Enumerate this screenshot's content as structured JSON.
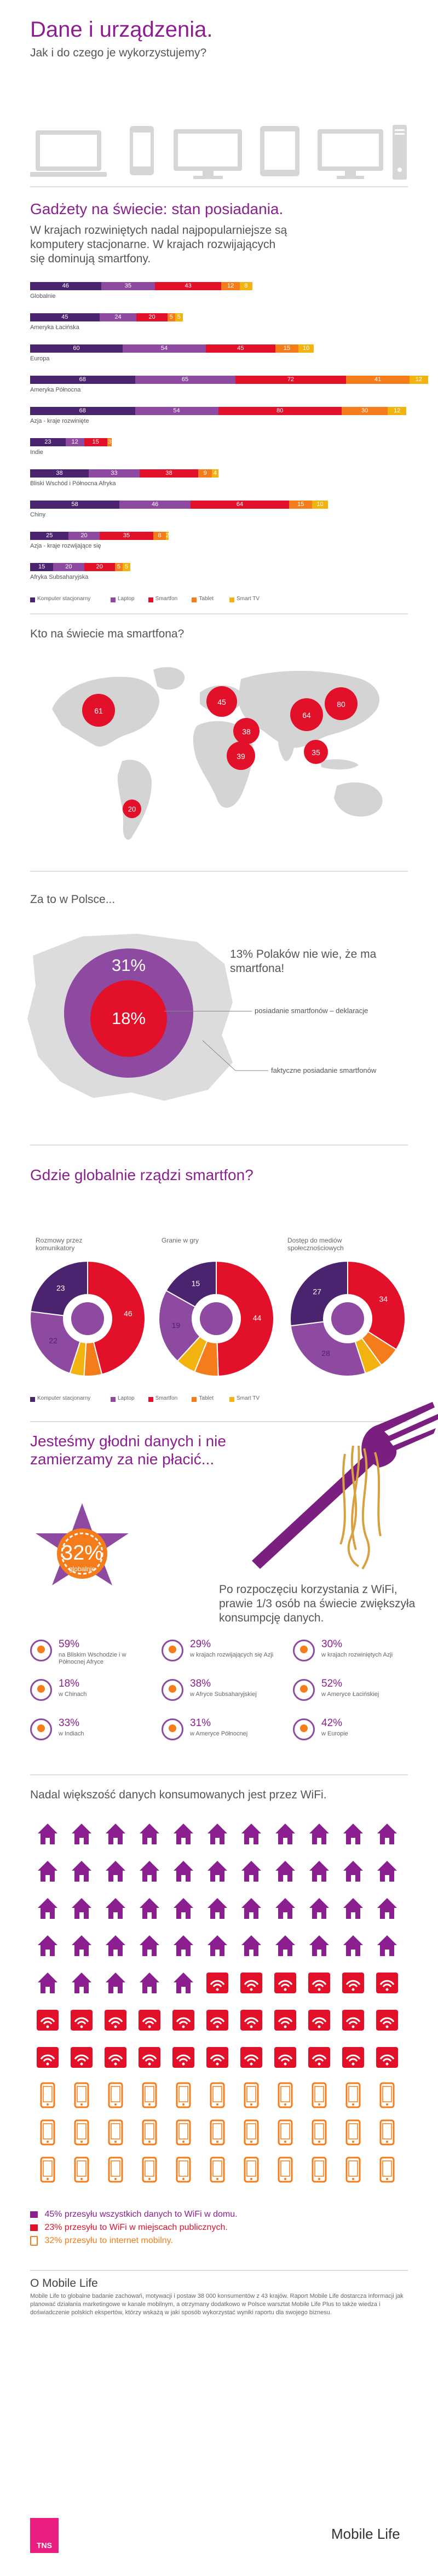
{
  "header": {
    "title": "Dane i urządzenia.",
    "subtitle": "Jak i do czego je wykorzystujemy?"
  },
  "colors": {
    "desktop": "#4b2470",
    "laptop": "#8e4aa0",
    "smartphone": "#e3102a",
    "tablet": "#f47c1a",
    "smart_tv": "#f2b20f",
    "accent": "#8b1f8f",
    "gray": "#d6d6d6"
  },
  "ownership": {
    "title": "Gadżety na świecie: stan posiadania.",
    "text": "W krajach rozwiniętych nadal najpopularniejsze są komputery stacjonarne. W krajach rozwijających się dominują smartfony.",
    "legend": [
      "Komputer stacjonarny",
      "Laptop",
      "Smartfon",
      "Tablet",
      "Smart TV"
    ],
    "rows": [
      {
        "label": "Globalnie",
        "values": [
          46,
          35,
          43,
          12,
          8
        ]
      },
      {
        "label": "Ameryka Łacińska",
        "values": [
          45,
          24,
          20,
          5,
          5
        ]
      },
      {
        "label": "Europa",
        "values": [
          60,
          54,
          45,
          15,
          10
        ]
      },
      {
        "label": "Ameryka Północna",
        "values": [
          68,
          65,
          72,
          41,
          12
        ]
      },
      {
        "label": "Azja - kraje rozwinięte",
        "values": [
          68,
          54,
          80,
          30,
          12
        ]
      },
      {
        "label": "Indie",
        "values": [
          23,
          12,
          15,
          3,
          0
        ]
      },
      {
        "label": "Bliski Wschód i Północna Afryka",
        "values": [
          38,
          33,
          38,
          9,
          4
        ]
      },
      {
        "label": "Chiny",
        "values": [
          58,
          46,
          64,
          15,
          10
        ]
      },
      {
        "label": "Azja - kraje rozwijające się",
        "values": [
          25,
          20,
          35,
          8,
          2
        ]
      },
      {
        "label": "Afryka Subsaharyjska",
        "values": [
          15,
          20,
          20,
          5,
          5
        ]
      }
    ]
  },
  "map": {
    "title": "Kto na świecie ma smartfona?",
    "bubbles": [
      "61",
      "45",
      "38",
      "39",
      "64",
      "80",
      "35",
      "20"
    ]
  },
  "poland": {
    "title": "Za to w Polsce...",
    "outer_pct": "31%",
    "inner_pct": "18%",
    "quote": "13% Polaków nie wie, że ma smartfona!",
    "label_declared": "posiadanie smartfonów – deklaracje",
    "label_actual": "faktyczne posiadanie smartfonów"
  },
  "rules": {
    "title": "Gdzie globalnie rządzi smartfon?",
    "donuts": [
      {
        "label": "Rozmowy przez komunikatory",
        "values": [
          23,
          22,
          46,
          5,
          4
        ]
      },
      {
        "label": "Granie w gry",
        "values": [
          15,
          19,
          44,
          6,
          5
        ]
      },
      {
        "label": "Dostęp do mediów społecznościowych",
        "values": [
          27,
          28,
          34,
          6,
          5
        ]
      }
    ],
    "legend": [
      "Komputer stacjonarny",
      "Laptop",
      "Smartfon",
      "Tablet",
      "Smart TV"
    ]
  },
  "hungry": {
    "title": "Jesteśmy głodni danych i nie zamierzamy za nie płacić...",
    "pct": "32%",
    "pct_label": "globalnie",
    "text": "Po rozpoczęciu korzystania z WiFi, prawie 1/3 osób na świecie zwiększyła konsumpcję danych.",
    "stats": [
      {
        "pct": "59%",
        "desc": "na Bliskim Wschodzie i w Północnej Afryce"
      },
      {
        "pct": "29%",
        "desc": "w krajach rozwijających się Azji"
      },
      {
        "pct": "30%",
        "desc": "w krajach rozwiniętych Azji"
      },
      {
        "pct": "18%",
        "desc": "w Chinach"
      },
      {
        "pct": "38%",
        "desc": "w Afryce Subsaharyjskiej"
      },
      {
        "pct": "52%",
        "desc": "w Ameryce Łacińskiej"
      },
      {
        "pct": "33%",
        "desc": "w Indiach"
      },
      {
        "pct": "31%",
        "desc": "w Ameryce Północnej"
      },
      {
        "pct": "42%",
        "desc": "w Europie"
      }
    ]
  },
  "wifi": {
    "title": "Nadal większość danych konsumowanych jest przez WiFi.",
    "legend": [
      {
        "text": "45% przesyłu wszystkich danych to WiFi w domu.",
        "color": "#8b1f8f"
      },
      {
        "text": "23% przesyłu to WiFi w miejscach publicznych.",
        "color": "#e3102a"
      },
      {
        "text": "32% przesyłu to internet mobilny.",
        "color": "#f47c1a"
      }
    ]
  },
  "footer": {
    "about_title": "O Mobile Life",
    "about_text": "Mobile Life to globalne badanie zachowań, motywacji i postaw 38 000 konsumentów z 43 krajów. Raport Mobile Life dostarcza informacji jak planować działania marketingowe w kanale mobilnym, a otrzymany dodatkowo w Polsce warsztat Mobile Life Plus to także wiedza i doświadczenie polskich ekspertów, którzy wskażą w jaki sposób wykorzystać wyniki raportu dla swojego biznesu.",
    "logo": "TNS",
    "brand": "Mobile Life"
  }
}
